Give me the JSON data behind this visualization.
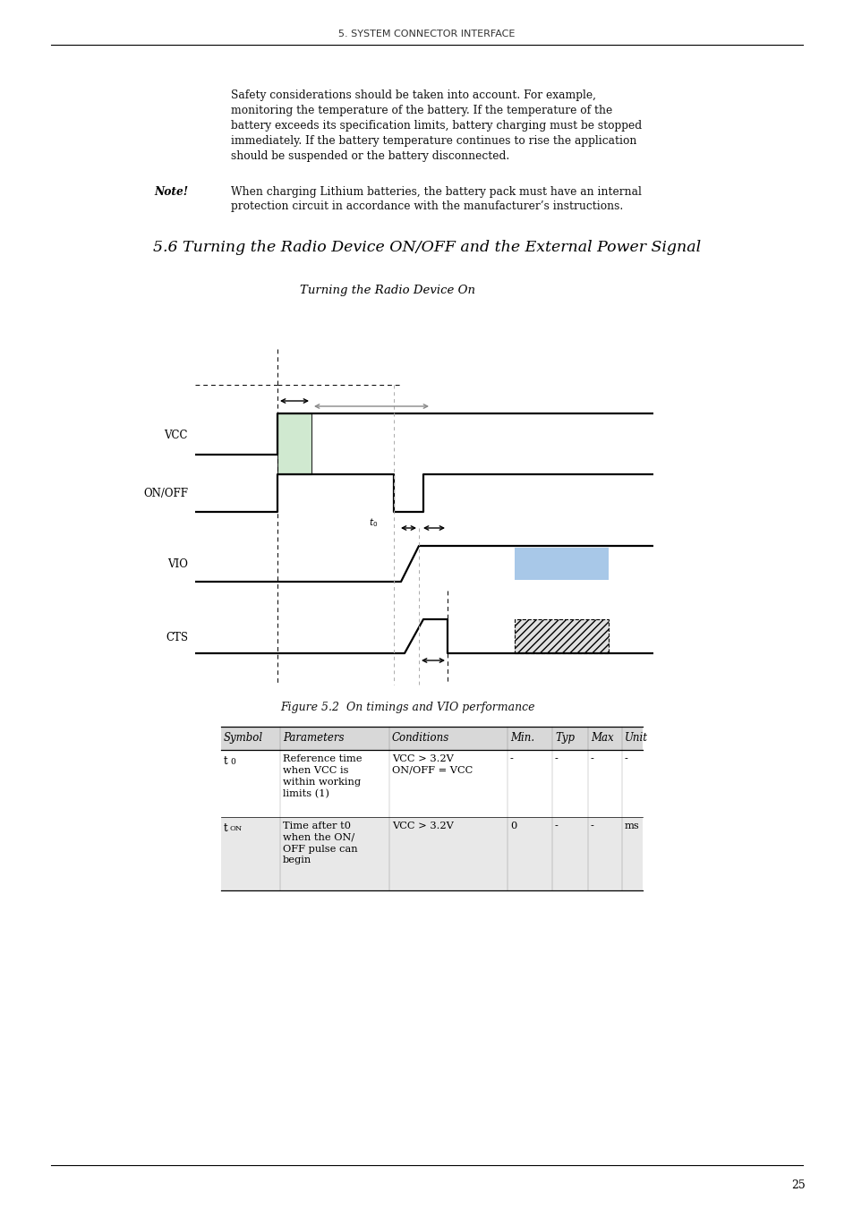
{
  "page_header": "5. SYSTEM CONNECTOR INTERFACE",
  "body_text_lines": [
    "Safety considerations should be taken into account. For example,",
    "monitoring the temperature of the battery. If the temperature of the",
    "battery exceeds its specification limits, battery charging must be stopped",
    "immediately. If the battery temperature continues to rise the application",
    "should be suspended or the battery disconnected."
  ],
  "note_label": "Note!",
  "note_text_lines": [
    "When charging Lithium batteries, the battery pack must have an internal",
    "protection circuit in accordance with the manufacturer’s instructions."
  ],
  "section_title": "5.6 Turning the Radio Device ON/OFF and the External Power Signal",
  "diagram_title": "Turning the Radio Device On",
  "figure_caption": "Figure 5.2  On timings and VIO performance",
  "signal_labels": [
    "VCC",
    "ON/OFF",
    "VIO",
    "CTS"
  ],
  "table_headers": [
    "Symbol",
    "Parameters",
    "Conditions",
    "Min.",
    "Typ",
    "Max",
    "Unit"
  ],
  "row1_symbol": "t",
  "row1_symbol_sub": "0",
  "row1_params": "Reference time\nwhen VCC is\nwithin working\nlimits (1)",
  "row1_cond": "VCC > 3.2V\nON/OFF = VCC",
  "row1_min": "-",
  "row1_typ": "-",
  "row1_max": "-",
  "row1_unit": "-",
  "row2_symbol": "t",
  "row2_symbol_sub": "ON",
  "row2_params": "Time after t0\nwhen the ON/\nOFF pulse can\nbegin",
  "row2_cond": "VCC > 3.2V",
  "row2_min": "0",
  "row2_typ": "-",
  "row2_max": "-",
  "row2_unit": "ms",
  "page_number": "25",
  "bg_color": "#ffffff",
  "green_fill": "#c8e6c8",
  "blue_fill": "#a8c8e8",
  "table_header_bg": "#d8d8d8",
  "table_row2_bg": "#e8e8e8"
}
